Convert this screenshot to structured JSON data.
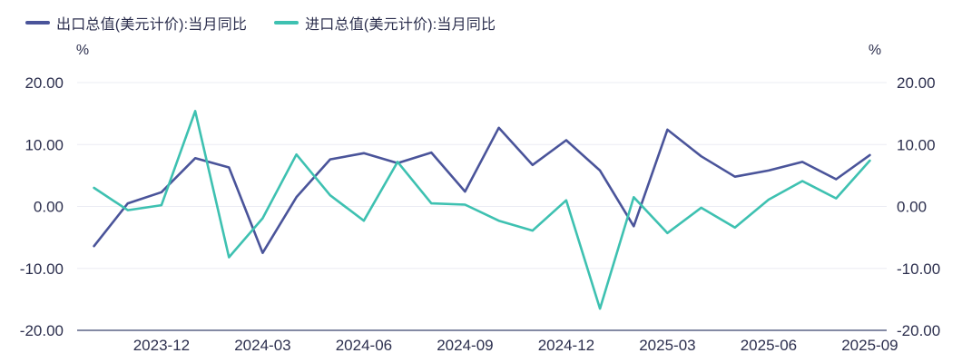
{
  "colors": {
    "background": "#ffffff",
    "text": "#2c2f4e",
    "grid": "#ebecf3",
    "axis": "#5c6386",
    "export_line": "#4a549a",
    "import_line": "#3ec1b1"
  },
  "legend": {
    "items": [
      {
        "label": "出口总值(美元计价):当月同比",
        "color": "#4a549a"
      },
      {
        "label": "进口总值(美元计价):当月同比",
        "color": "#3ec1b1"
      }
    ]
  },
  "chart_data": {
    "type": "line",
    "title": "",
    "unit_left": "%",
    "unit_right": "%",
    "grid": true,
    "legend_position": "top-left",
    "ylim": [
      -20,
      20
    ],
    "y_ticks": [
      20,
      10,
      0,
      -10,
      -20
    ],
    "y_tick_labels": [
      "20.00",
      "10.00",
      "0.00",
      "-10.00",
      "-20.00"
    ],
    "x": [
      "2023-10",
      "2023-11",
      "2023-12",
      "2024-01",
      "2024-02",
      "2024-03",
      "2024-04",
      "2024-05",
      "2024-06",
      "2024-07",
      "2024-08",
      "2024-09",
      "2024-10",
      "2024-11",
      "2024-12",
      "2025-01",
      "2025-02",
      "2025-03",
      "2025-04",
      "2025-05",
      "2025-06",
      "2025-07",
      "2025-08",
      "2025-09"
    ],
    "x_tick_labels": [
      "2023-12",
      "2024-03",
      "2024-06",
      "2024-09",
      "2024-12",
      "2025-03",
      "2025-06",
      "2025-09"
    ],
    "series": [
      {
        "name": "出口总值(美元计价):当月同比",
        "color": "#4a549a",
        "values": [
          -6.4,
          0.5,
          2.3,
          7.8,
          6.3,
          -7.5,
          1.5,
          7.6,
          8.6,
          7.0,
          8.7,
          2.4,
          12.7,
          6.7,
          10.7,
          5.8,
          -3.2,
          12.4,
          8.1,
          4.8,
          5.8,
          7.2,
          4.4,
          8.3
        ]
      },
      {
        "name": "进口总值(美元计价):当月同比",
        "color": "#3ec1b1",
        "values": [
          3.0,
          -0.6,
          0.2,
          15.4,
          -8.2,
          -1.9,
          8.4,
          1.8,
          -2.3,
          7.2,
          0.5,
          0.3,
          -2.3,
          -3.9,
          1.0,
          -16.5,
          1.5,
          -4.3,
          -0.2,
          -3.4,
          1.1,
          4.1,
          1.3,
          7.4
        ]
      }
    ]
  }
}
